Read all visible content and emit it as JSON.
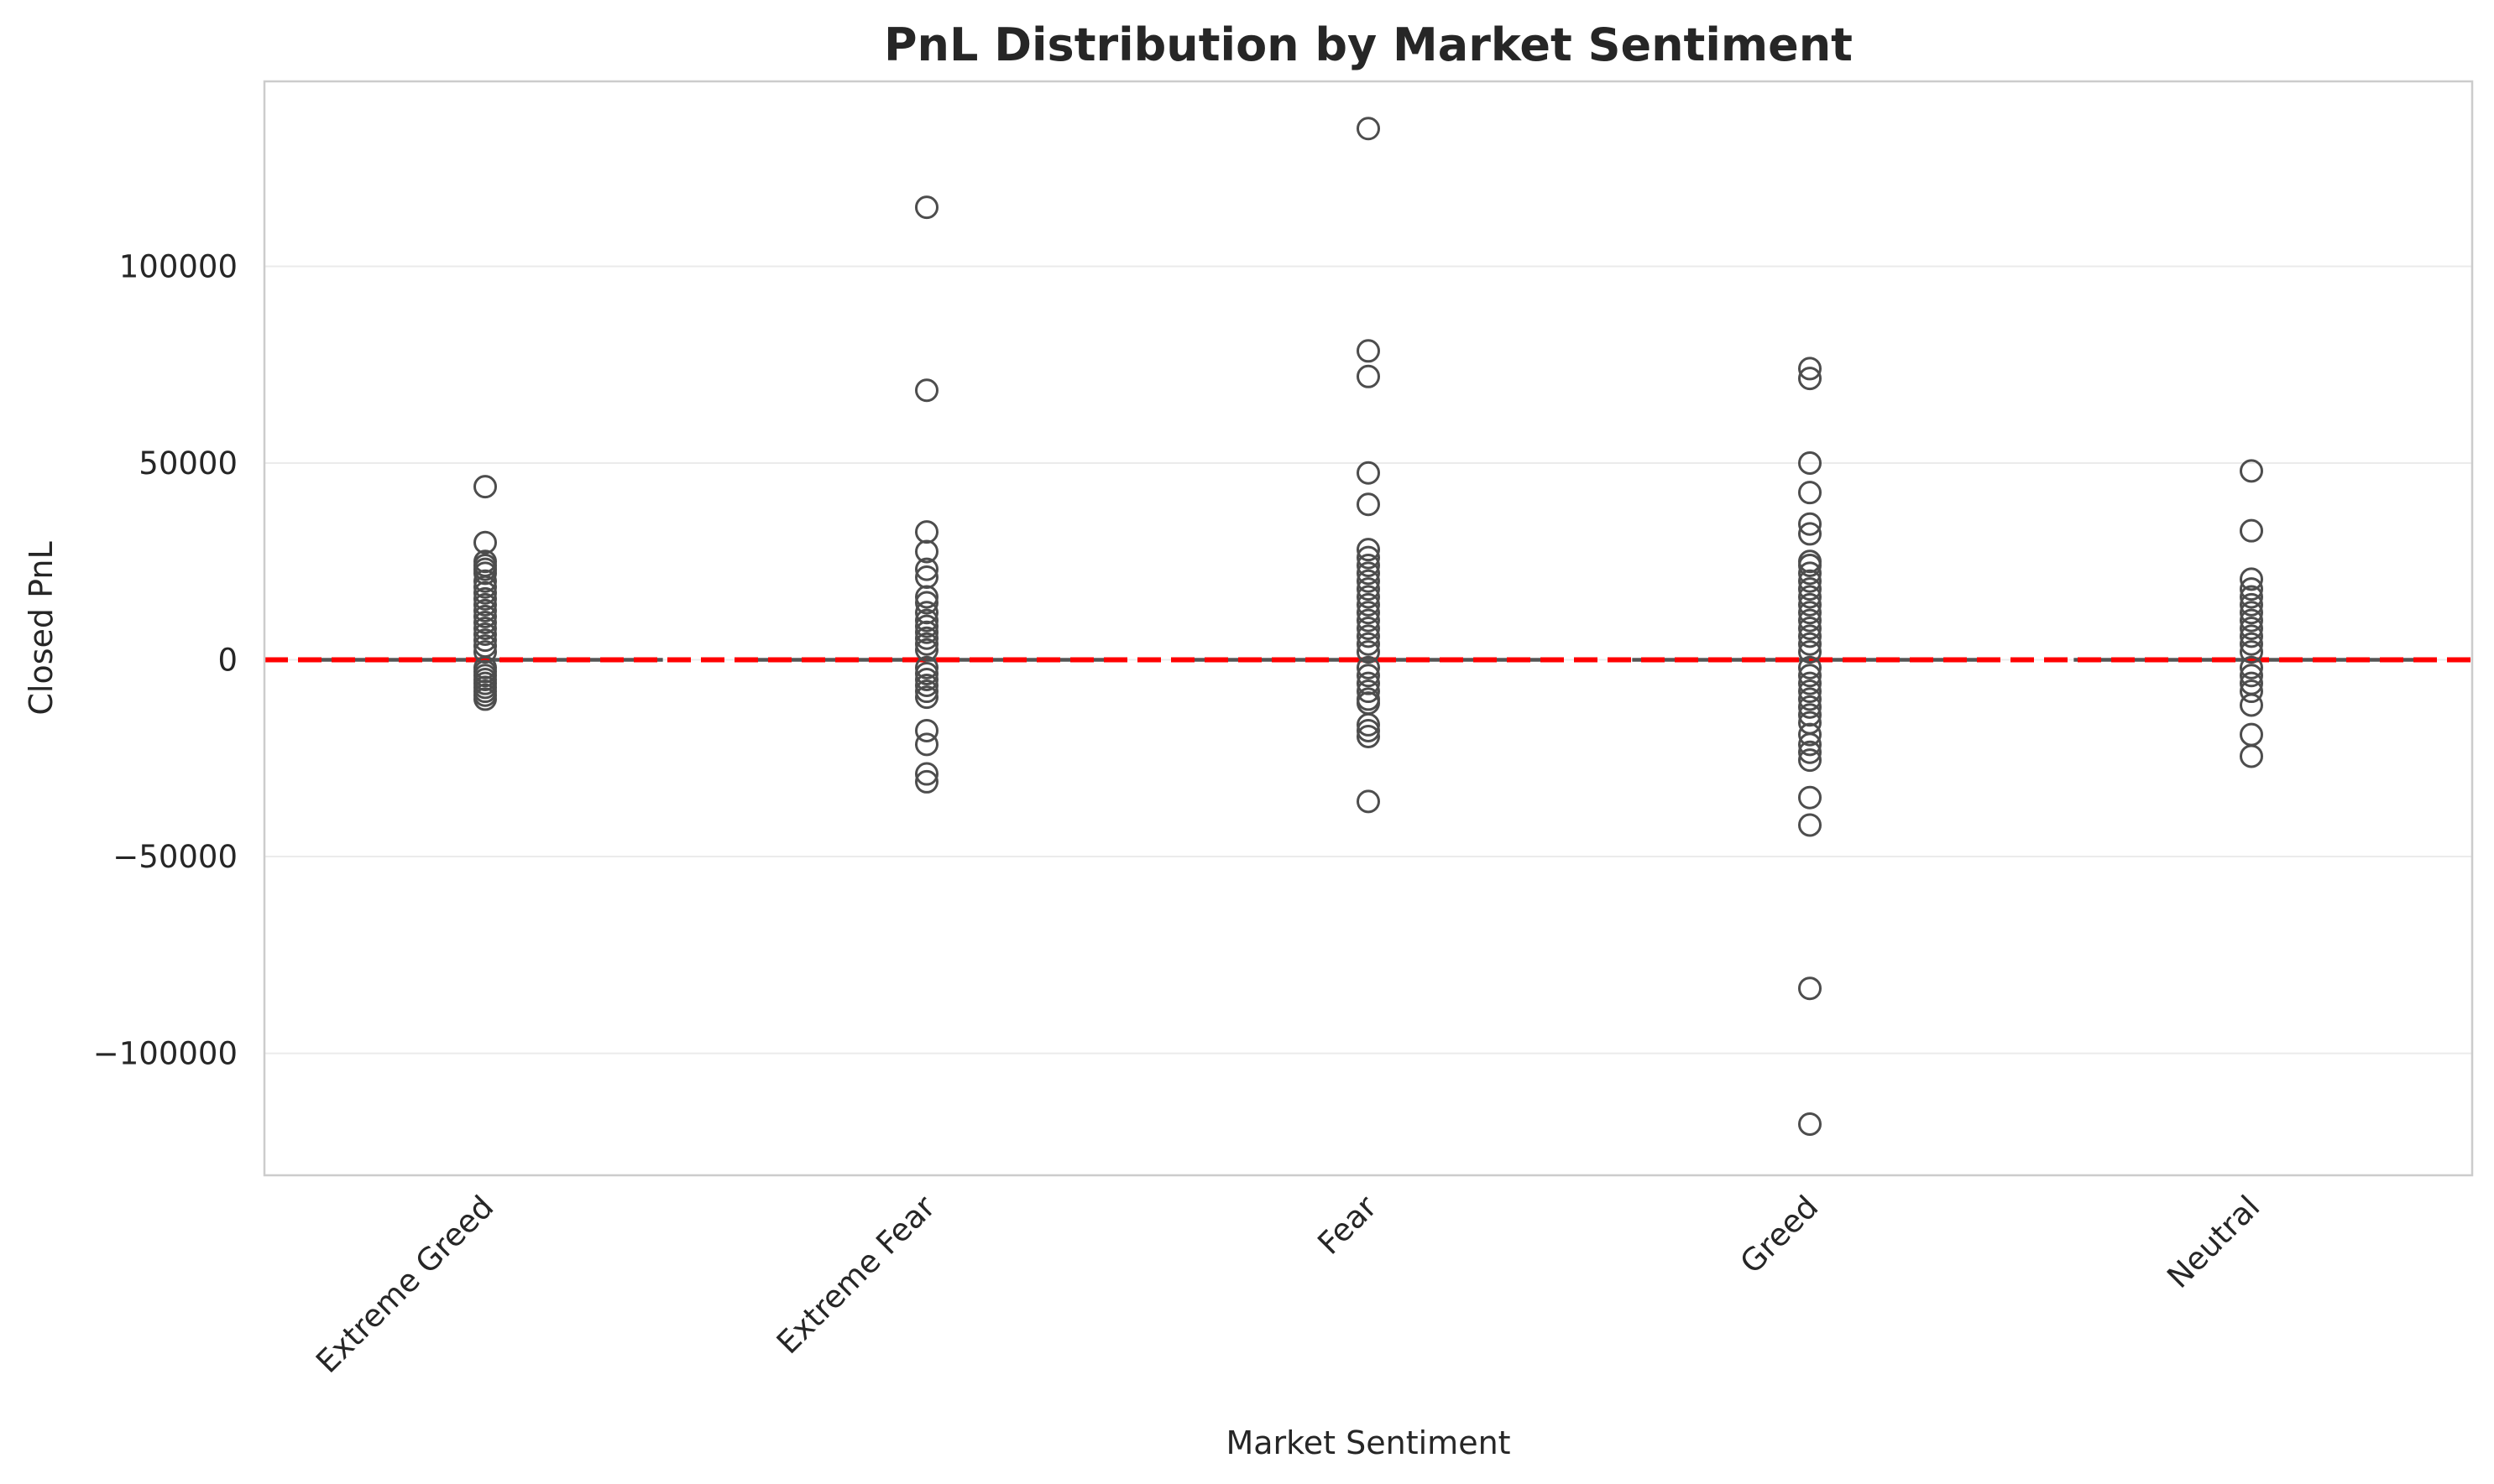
{
  "chart_data": {
    "type": "box",
    "title": "PnL Distribution by Market Sentiment",
    "xlabel": "Market Sentiment",
    "ylabel": "Closed PnL",
    "categories": [
      "Extreme Greed",
      "Extreme Fear",
      "Fear",
      "Greed",
      "Neutral"
    ],
    "ylim": [
      -131000,
      147000
    ],
    "yticks": [
      100000,
      50000,
      0,
      -50000,
      -100000
    ],
    "ytick_labels": [
      "100000",
      "50000",
      "0",
      "−50000",
      "−100000"
    ],
    "grid": "horizontal",
    "reference_line": {
      "y": 0,
      "color": "#ff0000",
      "style": "dashed"
    },
    "colors": {
      "box": "#d9d9d9",
      "box_edge": "#555555",
      "outlier_edge": "#4d4d4d",
      "grid": "#ebebeb",
      "frame": "#cccccc"
    },
    "series": [
      {
        "category": "Extreme Greed",
        "q1": 0,
        "median": 0,
        "q3": 0,
        "outliers": [
          44000,
          29800,
          25000,
          24000,
          23000,
          22000,
          20000,
          18500,
          17000,
          15500,
          14000,
          12500,
          11000,
          9500,
          8000,
          6500,
          5000,
          3500,
          2000,
          -2000,
          -3000,
          -4000,
          -5000,
          -6000,
          -7000,
          -8000,
          -9000,
          -10000
        ]
      },
      {
        "category": "Extreme Fear",
        "q1": 0,
        "median": 0,
        "q3": 0,
        "outliers": [
          115000,
          68500,
          32500,
          27500,
          23000,
          21000,
          16000,
          14500,
          12000,
          10000,
          8500,
          7000,
          5500,
          4000,
          2500,
          -2000,
          -3500,
          -5000,
          -6500,
          -8000,
          -9500,
          -18000,
          -21500,
          -29000,
          -31000
        ]
      },
      {
        "category": "Fear",
        "q1": 0,
        "median": 0,
        "q3": 0,
        "outliers": [
          135000,
          78500,
          72000,
          47500,
          39500,
          28000,
          26000,
          24000,
          22000,
          20000,
          18000,
          16000,
          14000,
          12000,
          10000,
          8000,
          6000,
          4000,
          2000,
          -2000,
          -4000,
          -6000,
          -8000,
          -10000,
          -11000,
          -16500,
          -18000,
          -19500,
          -36000
        ]
      },
      {
        "category": "Greed",
        "q1": 0,
        "median": 0,
        "q3": 0,
        "outliers": [
          74000,
          71500,
          50000,
          42500,
          34500,
          32000,
          25000,
          24000,
          22000,
          20000,
          18000,
          16000,
          14000,
          12000,
          10000,
          8000,
          6000,
          4000,
          2000,
          -2000,
          -4000,
          -6000,
          -8000,
          -10000,
          -12000,
          -14000,
          -16000,
          -19000,
          -21500,
          -23500,
          -25500,
          -35000,
          -42000,
          -83500,
          -118000
        ]
      },
      {
        "category": "Neutral",
        "q1": 0,
        "median": 0,
        "q3": 0,
        "outliers": [
          48000,
          32800,
          20500,
          18000,
          16000,
          14000,
          12000,
          10000,
          8000,
          6000,
          4000,
          2000,
          -2000,
          -4000,
          -6000,
          -8000,
          -11500,
          -19000,
          -24500
        ]
      }
    ]
  }
}
